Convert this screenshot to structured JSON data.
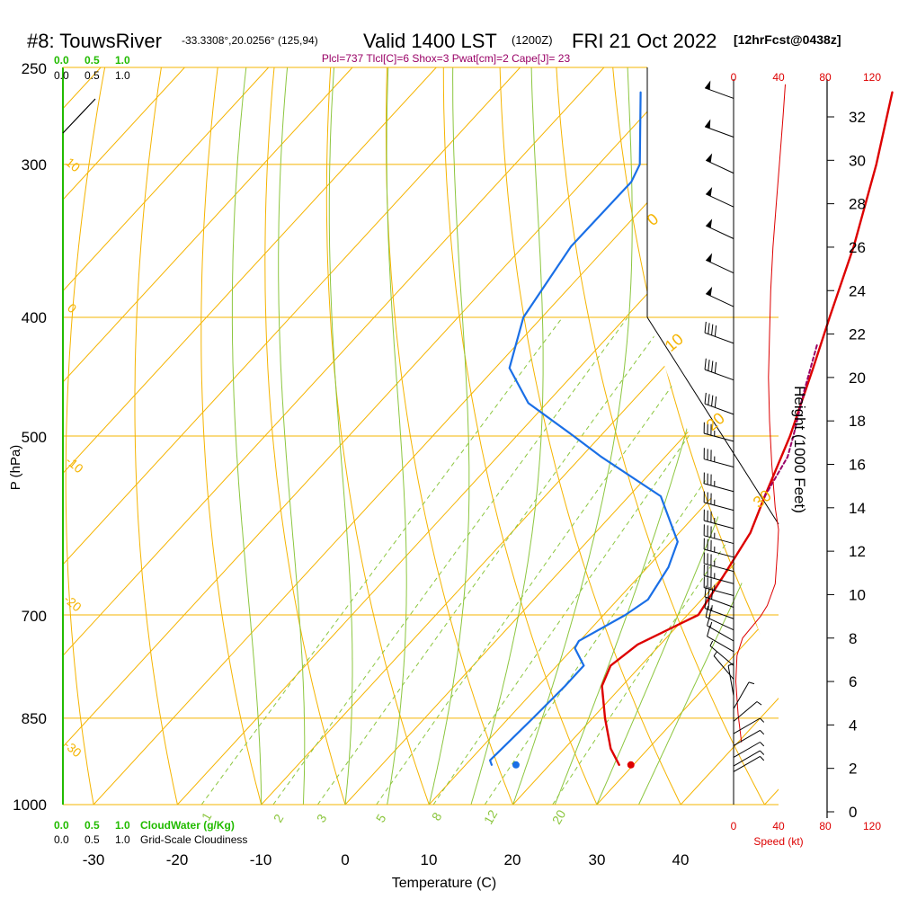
{
  "header": {
    "station": "#8: TouwsRiver",
    "coords": "-33.3308°,20.0256° (125,94)",
    "valid": "Valid 1400 LST",
    "utc": "(1200Z)",
    "date": "FRI 21 Oct 2022",
    "forecast": "[12hrFcst@0438z]",
    "params": "Plcl=737 Tlcl[C]=6 Shox=3 Pwat[cm]=2 Cape[J]= 23"
  },
  "legend": {
    "cloudwater_title": "CloudWater (g/Kg)",
    "cloudiness_title": "Grid-Scale Cloudiness",
    "top_green": [
      "0.0",
      "0.5",
      "1.0"
    ],
    "top_black": [
      "0.0",
      "0.5",
      "1.0"
    ],
    "bottom_green": [
      "0.0",
      "0.5",
      "1.0"
    ],
    "bottom_black": [
      "0.0",
      "0.5",
      "1.0"
    ]
  },
  "axes": {
    "pressure_label": "P (hPa)",
    "temperature_label": "Temperature (C)",
    "height_label": "Height (1000 Feet)",
    "speed_label": "Speed (kt)",
    "pressure_ticks": [
      "250",
      "300",
      "400",
      "500",
      "700",
      "850",
      "1000"
    ],
    "temperature_ticks": [
      "-30",
      "-20",
      "-10",
      "0",
      "10",
      "20",
      "30",
      "40"
    ],
    "height_ticks": [
      "32",
      "30",
      "28",
      "26",
      "24",
      "22",
      "20",
      "18",
      "16",
      "14",
      "12",
      "10",
      "8",
      "6",
      "4",
      "2",
      "0"
    ],
    "speed_ticks": [
      "0",
      "40",
      "80",
      "120"
    ]
  },
  "overlay_labels": {
    "isotherm_labels": [
      "10",
      "0",
      "-10",
      "-20",
      "-30"
    ],
    "dry_adiabat_labels": [
      "0",
      "10",
      "20",
      "30"
    ],
    "mixing_ratio_labels": [
      "1",
      "2",
      "3",
      "5",
      "8",
      "12",
      "20"
    ]
  },
  "colors": {
    "temperature": "#dd0000",
    "dewpoint": "#1a6fe6",
    "parcel": "#990066",
    "isotherm": "#f5b400",
    "dry_adiabat": "#f5b400",
    "moist_adiabat": "#8cc63f",
    "mixing_ratio": "#8cc63f",
    "cloudwater": "#22bb00",
    "speed": "#dd0000"
  },
  "chart_data": {
    "type": "line",
    "title": "Skew-T log-P sounding",
    "xlabel": "Temperature (C)",
    "ylabel": "P (hPa)",
    "ylim": [
      1000,
      250
    ],
    "series": [
      {
        "name": "Temperature",
        "points": [
          [
            928,
            28.3
          ],
          [
            900,
            25.5
          ],
          [
            850,
            21.5
          ],
          [
            800,
            17.6
          ],
          [
            770,
            16.4
          ],
          [
            740,
            17.3
          ],
          [
            700,
            21.3
          ],
          [
            650,
            20.0
          ],
          [
            600,
            18.5
          ],
          [
            560,
            16.2
          ],
          [
            500,
            12.6
          ],
          [
            440,
            7.9
          ],
          [
            400,
            4.3
          ],
          [
            350,
            -0.6
          ],
          [
            300,
            -6.9
          ],
          [
            262,
            -12.9
          ]
        ]
      },
      {
        "name": "Dewpoint",
        "points": [
          [
            928,
            13.1
          ],
          [
            920,
            12.4
          ],
          [
            850,
            12.9
          ],
          [
            800,
            13.2
          ],
          [
            770,
            13.2
          ],
          [
            745,
            10.2
          ],
          [
            735,
            9.9
          ],
          [
            700,
            12.6
          ],
          [
            680,
            13.6
          ],
          [
            640,
            12.5
          ],
          [
            610,
            10.8
          ],
          [
            560,
            3.8
          ],
          [
            520,
            -7.6
          ],
          [
            500,
            -13.2
          ],
          [
            470,
            -22.2
          ],
          [
            440,
            -28.3
          ],
          [
            400,
            -32.2
          ],
          [
            350,
            -34.3
          ],
          [
            310,
            -34.2
          ],
          [
            300,
            -35.1
          ],
          [
            262,
            -42.9
          ]
        ]
      },
      {
        "name": "Parcel",
        "points": [
          [
            560,
            16.2
          ],
          [
            520,
            14.6
          ],
          [
            500,
            13.0
          ],
          [
            460,
            9.4
          ],
          [
            420,
            5.7
          ]
        ]
      }
    ],
    "surface_temperature": 29.7,
    "surface_dewpoint": 16.0,
    "isotherm_label_values": [
      10,
      0,
      -10,
      -20,
      -30
    ],
    "dry_adiabat_label_values": [
      0,
      10,
      20,
      30
    ],
    "mixing_ratio_values": [
      1,
      2,
      3,
      5,
      8,
      12,
      20
    ],
    "height_ft": [
      0,
      2000,
      4000,
      6000,
      8000,
      10000,
      12000,
      14000,
      16000,
      18000,
      20000,
      22000,
      24000,
      26000,
      28000,
      30000,
      32000
    ],
    "wind_speed_profile": [
      [
        3200,
        7
      ],
      [
        4500,
        4
      ],
      [
        6000,
        2
      ],
      [
        7200,
        3
      ],
      [
        8000,
        8
      ],
      [
        9000,
        24
      ],
      [
        9500,
        30
      ],
      [
        10500,
        37
      ],
      [
        12000,
        39
      ],
      [
        13000,
        40
      ],
      [
        14000,
        37
      ],
      [
        16000,
        34
      ],
      [
        18000,
        32
      ],
      [
        20000,
        31
      ],
      [
        22000,
        32
      ],
      [
        24000,
        33
      ],
      [
        26000,
        35
      ],
      [
        28000,
        38
      ],
      [
        30000,
        41
      ],
      [
        32000,
        44
      ],
      [
        33500,
        46
      ]
    ],
    "wind_barbs": [
      {
        "p": 265,
        "dir": 290,
        "spd": 50
      },
      {
        "p": 285,
        "dir": 290,
        "spd": 50
      },
      {
        "p": 305,
        "dir": 295,
        "spd": 50
      },
      {
        "p": 325,
        "dir": 295,
        "spd": 50
      },
      {
        "p": 345,
        "dir": 295,
        "spd": 50
      },
      {
        "p": 368,
        "dir": 295,
        "spd": 50
      },
      {
        "p": 392,
        "dir": 295,
        "spd": 50
      },
      {
        "p": 420,
        "dir": 290,
        "spd": 40
      },
      {
        "p": 450,
        "dir": 290,
        "spd": 40
      },
      {
        "p": 480,
        "dir": 290,
        "spd": 40
      },
      {
        "p": 505,
        "dir": 285,
        "spd": 35
      },
      {
        "p": 530,
        "dir": 285,
        "spd": 35
      },
      {
        "p": 555,
        "dir": 285,
        "spd": 35
      },
      {
        "p": 575,
        "dir": 285,
        "spd": 35
      },
      {
        "p": 595,
        "dir": 285,
        "spd": 35
      },
      {
        "p": 612,
        "dir": 285,
        "spd": 35
      },
      {
        "p": 628,
        "dir": 285,
        "spd": 35
      },
      {
        "p": 645,
        "dir": 285,
        "spd": 35
      },
      {
        "p": 660,
        "dir": 285,
        "spd": 35
      },
      {
        "p": 675,
        "dir": 285,
        "spd": 35
      },
      {
        "p": 690,
        "dir": 290,
        "spd": 30
      },
      {
        "p": 705,
        "dir": 290,
        "spd": 25
      },
      {
        "p": 720,
        "dir": 295,
        "spd": 20
      },
      {
        "p": 735,
        "dir": 300,
        "spd": 15
      },
      {
        "p": 750,
        "dir": 300,
        "spd": 10
      },
      {
        "p": 770,
        "dir": 310,
        "spd": 5
      },
      {
        "p": 790,
        "dir": 320,
        "spd": 5
      },
      {
        "p": 815,
        "dir": 350,
        "spd": 5
      },
      {
        "p": 835,
        "dir": 30,
        "spd": 5
      },
      {
        "p": 855,
        "dir": 50,
        "spd": 5
      },
      {
        "p": 875,
        "dir": 60,
        "spd": 5
      },
      {
        "p": 895,
        "dir": 60,
        "spd": 5
      },
      {
        "p": 915,
        "dir": 60,
        "spd": 5
      },
      {
        "p": 930,
        "dir": 60,
        "spd": 5
      },
      {
        "p": 940,
        "dir": 60,
        "spd": 5
      }
    ]
  }
}
